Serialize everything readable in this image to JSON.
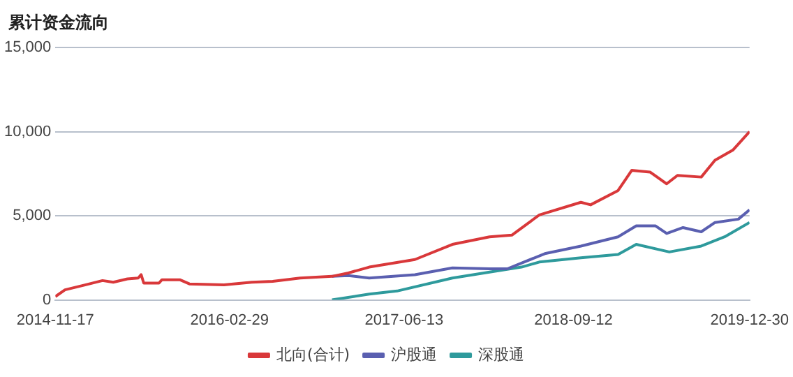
{
  "chart_data": {
    "type": "line",
    "title": "累计资金流向",
    "series": [
      {
        "name": "北向(合计)",
        "color": "#d9383a",
        "x": [
          "2014-11-17",
          "2014-12-13",
          "2015-02-07",
          "2015-03-24",
          "2015-04-22",
          "2015-05-30",
          "2015-06-28",
          "2015-07-06",
          "2015-07-13",
          "2015-08-23",
          "2015-08-31",
          "2015-10-18",
          "2015-11-13",
          "2016-02-14",
          "2016-04-29",
          "2016-06-24",
          "2016-09-06",
          "2016-12-01",
          "2017-01-14",
          "2017-03-11",
          "2017-07-12",
          "2017-10-21",
          "2018-01-29",
          "2018-03-30",
          "2018-06-12",
          "2018-10-02",
          "2018-10-28",
          "2019-01-10",
          "2019-02-16",
          "2019-04-06",
          "2019-05-21",
          "2019-06-19",
          "2019-08-22",
          "2019-09-28",
          "2019-11-15",
          "2019-12-30"
        ],
        "values": [
          200,
          600,
          900,
          1150,
          1050,
          1250,
          1300,
          1500,
          1000,
          1000,
          1200,
          1200,
          950,
          900,
          1050,
          1100,
          1300,
          1400,
          1600,
          1950,
          2400,
          3300,
          3750,
          3850,
          5050,
          5800,
          5650,
          6500,
          7700,
          7600,
          6900,
          7400,
          7300,
          8300,
          8900,
          10000
        ]
      },
      {
        "name": "沪股通",
        "color": "#5a5fb0",
        "x": [
          "2016-12-01",
          "2017-01-14",
          "2017-03-11",
          "2017-07-12",
          "2017-10-21",
          "2018-01-29",
          "2018-03-18",
          "2018-06-27",
          "2018-10-02",
          "2019-01-10",
          "2019-02-28",
          "2019-04-21",
          "2019-05-21",
          "2019-07-04",
          "2019-08-22",
          "2019-09-28",
          "2019-11-30",
          "2019-12-30"
        ],
        "values": [
          1400,
          1450,
          1300,
          1500,
          1900,
          1850,
          1850,
          2750,
          3200,
          3750,
          4400,
          4400,
          3950,
          4300,
          4050,
          4600,
          4800,
          5350
        ]
      },
      {
        "name": "深股通",
        "color": "#2e9a9c",
        "x": [
          "2016-12-01",
          "2017-03-11",
          "2017-05-25",
          "2017-10-21",
          "2018-01-29",
          "2018-04-25",
          "2018-06-12",
          "2018-10-02",
          "2019-01-10",
          "2019-02-28",
          "2019-05-28",
          "2019-08-22",
          "2019-10-24",
          "2019-12-30"
        ],
        "values": [
          0,
          350,
          530,
          1300,
          1650,
          1950,
          2250,
          2500,
          2700,
          3300,
          2850,
          3200,
          3750,
          4600
        ]
      }
    ],
    "xlim": [
      "2014-11-17",
      "2019-12-30"
    ],
    "xticks": [
      "2014-11-17",
      "2016-02-29",
      "2017-06-13",
      "2018-09-12",
      "2019-12-30"
    ],
    "ylim": [
      0,
      15000
    ],
    "yticks": [
      0,
      {
        "value": 5000,
        "label": "5,000"
      },
      {
        "value": 10000,
        "label": "10,000"
      },
      {
        "value": 15000,
        "label": "15,000"
      }
    ],
    "grid": "y",
    "legend": "bottom",
    "marker": "none",
    "line_style": "solid"
  }
}
